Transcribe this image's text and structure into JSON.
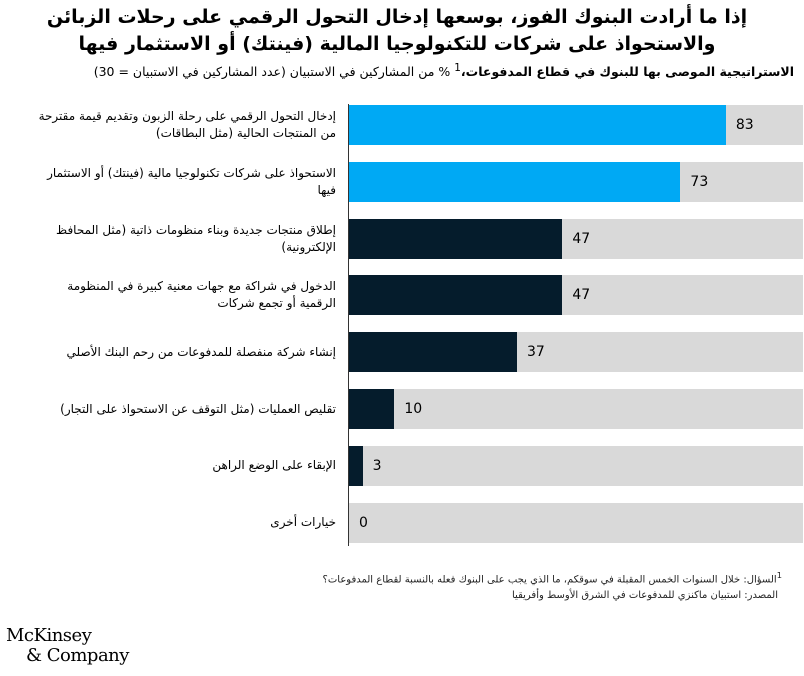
{
  "chart_data": {
    "type": "bar",
    "orientation": "horizontal",
    "title": "إذا ما أرادت البنوك الفوز، بوسعها إدخال التحول الرقمي على رحلات الزبائن والاستحواذ على شركات للتكنولوجيا المالية (فينتك) أو الاستثمار فيها",
    "subtitle_bold": "الاستراتيجية الموصى بها للبنوك في قطاع المدفوعات،",
    "subtitle_sup": "1",
    "subtitle_rest": "% من المشاركين في الاستبيان (عدد المشاركين في الاستبيان = 30)",
    "xlim": [
      0,
      100
    ],
    "categories": [
      "إدخال التحول الرقمي على رحلة الزبون وتقديم قيمة مقترحة من المنتجات الحالية (مثل البطاقات)",
      "الاستحواذ على شركات تكنولوجيا مالية (فينتك) أو الاستثمار فيها",
      "إطلاق منتجات جديدة وبناء منظومات ذاتية (مثل المحافظ الإلكترونية)",
      "الدخول في شراكة مع جهات معنية كبيرة في المنظومة الرقمية أو تجمع شركات",
      "إنشاء شركة منفصلة للمدفوعات من رحم البنك الأصلي",
      "تقليص العمليات (مثل التوقف عن الاستحواذ على التجار)",
      "الإبقاء على الوضع الراهن",
      "خيارات أخرى"
    ],
    "values": [
      83,
      73,
      47,
      47,
      37,
      10,
      3,
      0
    ],
    "colors": {
      "highlight": "#00a9f4",
      "dark": "#051c2c",
      "track": "#d9d9d9"
    },
    "highlighted": [
      0,
      1
    ]
  },
  "footnote_sup": "1",
  "footnote": "السؤال: خلال السنوات الخمس المقبلة في سوقكم، ما الذي يجب على البنوك فعله بالنسبة لقطاع المدفوعات؟",
  "source": "المصدر: استبيان ماكنزي للمدفوعات في الشرق الأوسط وأفريقيا",
  "logo": {
    "line1": "McKinsey",
    "line2": "& Company"
  }
}
